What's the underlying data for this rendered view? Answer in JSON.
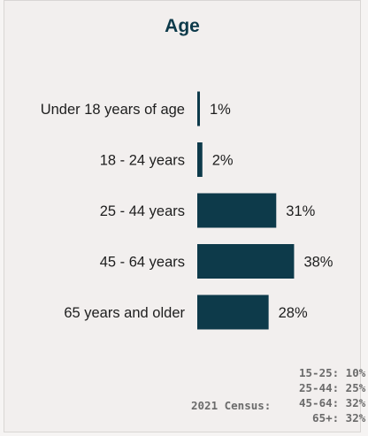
{
  "title": "Age",
  "chart_data": {
    "type": "bar",
    "orientation": "horizontal",
    "title": "Age",
    "categories": [
      "Under 18 years of age",
      "18 - 24 years",
      "25 - 44 years",
      "45 - 64 years",
      "65 years and older"
    ],
    "values": [
      1,
      2,
      31,
      38,
      28
    ],
    "value_labels": [
      "1%",
      "2%",
      "31%",
      "38%",
      "28%"
    ],
    "unit": "%",
    "grid": false,
    "bar_color": "#0d3a4a"
  },
  "census": {
    "label": "2021 Census:",
    "items": [
      "15-25: 10%",
      "25-44: 25%",
      "45-64: 32%",
      "65+: 32%"
    ]
  }
}
